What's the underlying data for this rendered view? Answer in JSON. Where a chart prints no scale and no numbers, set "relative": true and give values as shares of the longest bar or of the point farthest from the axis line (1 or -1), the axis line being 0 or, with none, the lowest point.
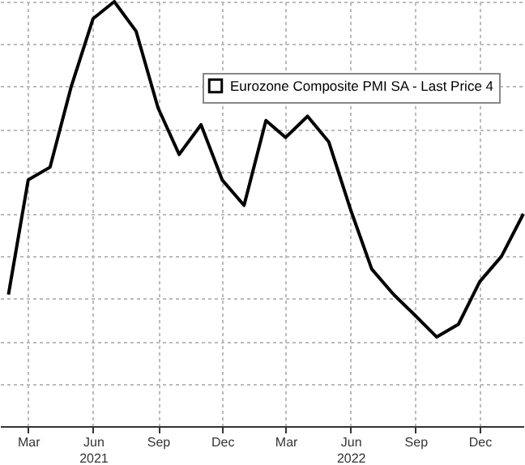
{
  "chart_data": {
    "type": "line",
    "relative": true,
    "x": [
      "2021-02",
      "2021-03",
      "2021-04",
      "2021-05",
      "2021-06",
      "2021-07",
      "2021-08",
      "2021-09",
      "2021-10",
      "2021-11",
      "2021-12",
      "2022-01",
      "2022-02",
      "2022-03",
      "2022-04",
      "2022-05",
      "2022-06",
      "2022-07",
      "2022-08",
      "2022-09",
      "2022-10",
      "2022-11",
      "2022-12",
      "2023-01",
      "2023-02"
    ],
    "series": [
      {
        "name": "Eurozone Composite PMI SA - Last Price 4",
        "color": "#000000",
        "values": [
          0.31,
          0.58,
          0.61,
          0.8,
          0.96,
          1,
          0.93,
          0.75,
          0.64,
          0.71,
          0.58,
          0.52,
          0.72,
          0.68,
          0.73,
          0.67,
          0.51,
          0.37,
          0.31,
          0.26,
          0.21,
          0.24,
          0.34,
          0.4,
          0.5
        ]
      }
    ],
    "xlim": [
      "2021-01-20",
      "2023-02-01"
    ],
    "xticks": [
      {
        "value": "2021-03",
        "label": "Mar"
      },
      {
        "value": "2021-06",
        "label": "Jun 2021"
      },
      {
        "value": "2021-09",
        "label": "Sep"
      },
      {
        "value": "2021-12",
        "label": "Dec"
      },
      {
        "value": "2022-03",
        "label": "Mar"
      },
      {
        "value": "2022-06",
        "label": "Jun 2022"
      },
      {
        "value": "2022-09",
        "label": "Sep"
      },
      {
        "value": "2022-12",
        "label": "Dec"
      }
    ],
    "grid": true,
    "legend": "top right"
  }
}
